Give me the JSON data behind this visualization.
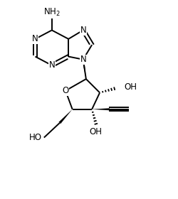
{
  "background_color": "#ffffff",
  "line_color": "#000000",
  "lw": 1.4,
  "fs": 8.5,
  "xlim": [
    0,
    9
  ],
  "ylim": [
    0,
    10
  ],
  "figsize": [
    2.5,
    2.8
  ],
  "dpi": 100
}
